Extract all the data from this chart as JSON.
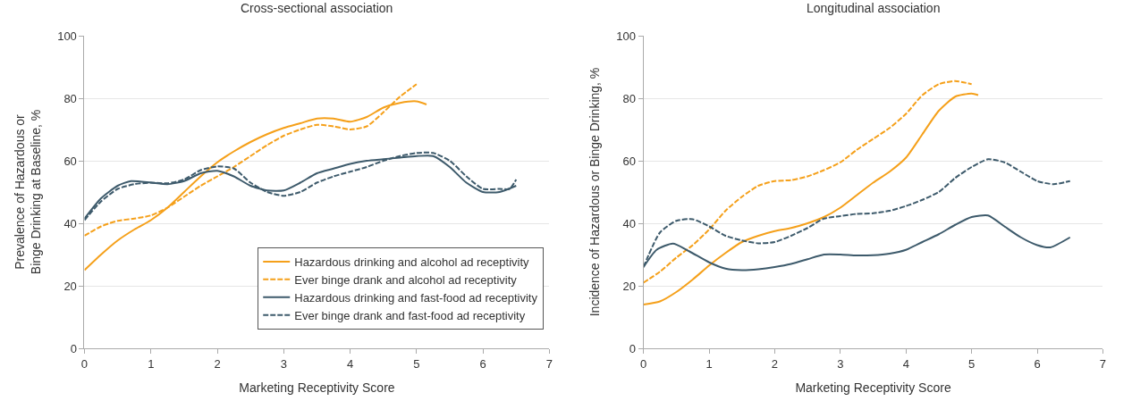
{
  "chart_data": [
    {
      "type": "line",
      "title": "Cross-sectional association",
      "xlabel": "Marketing Receptivity Score",
      "ylabel": "Prevalence of Hazardous or\nBinge Drinking at Baseline, %",
      "xlim": [
        0,
        7
      ],
      "xticks": [
        0,
        1,
        2,
        3,
        4,
        5,
        6,
        7
      ],
      "ylim": [
        0,
        100
      ],
      "yticks": [
        0,
        20,
        40,
        60,
        80,
        100
      ],
      "grid": "y",
      "legend": "bottom right",
      "marker": "none",
      "series": [
        {
          "name": "Hazardous drinking and alcohol ad receptivity",
          "color": "#f5a01a",
          "line_style": "solid",
          "x": [
            0,
            0.25,
            0.5,
            0.75,
            1,
            1.25,
            1.5,
            1.75,
            2,
            2.25,
            2.5,
            2.75,
            3,
            3.25,
            3.5,
            3.75,
            4,
            4.25,
            4.5,
            4.75,
            5,
            5.15
          ],
          "values": [
            25,
            30,
            34.5,
            38,
            41,
            45,
            50,
            55,
            59.5,
            63,
            66,
            68.5,
            70.5,
            72,
            73.5,
            73.5,
            72.5,
            74,
            77,
            78.5,
            79,
            78
          ]
        },
        {
          "name": "Ever binge drank and alcohol ad receptivity",
          "color": "#f5a01a",
          "line_style": "dashed",
          "x": [
            0,
            0.25,
            0.5,
            0.75,
            1,
            1.25,
            1.5,
            1.75,
            2,
            2.25,
            2.5,
            2.75,
            3,
            3.25,
            3.5,
            3.75,
            4,
            4.25,
            4.5,
            4.75,
            5
          ],
          "values": [
            36,
            39,
            40.8,
            41.5,
            42.5,
            45,
            48.5,
            52,
            55,
            58,
            61.5,
            65,
            68,
            70,
            71.5,
            71,
            70,
            71,
            75.5,
            80.5,
            84.5
          ]
        },
        {
          "name": "Hazardous drinking and fast-food ad receptivity",
          "color": "#3d5a6b",
          "line_style": "solid",
          "x": [
            0,
            0.25,
            0.5,
            0.7,
            1,
            1.25,
            1.5,
            1.75,
            2,
            2.25,
            2.5,
            2.75,
            3,
            3.25,
            3.5,
            3.75,
            4,
            4.25,
            4.5,
            4.75,
            5,
            5.25,
            5.5,
            5.75,
            6,
            6.25,
            6.5
          ],
          "values": [
            41.5,
            48,
            52,
            53.5,
            53,
            52.5,
            53.5,
            56,
            56.8,
            55,
            52,
            50.5,
            50.5,
            53,
            56,
            57.5,
            59,
            60,
            60.5,
            61,
            61.5,
            61.5,
            58,
            53,
            50,
            50,
            52
          ]
        },
        {
          "name": "Ever binge drank and fast-food ad receptivity",
          "color": "#3d5a6b",
          "line_style": "dashed",
          "x": [
            0,
            0.25,
            0.5,
            0.75,
            1,
            1.25,
            1.5,
            1.75,
            2,
            2.25,
            2.5,
            2.75,
            3,
            3.25,
            3.5,
            3.75,
            4,
            4.25,
            4.5,
            4.75,
            5,
            5.25,
            5.5,
            5.75,
            6,
            6.25,
            6.4,
            6.5
          ],
          "values": [
            41,
            47,
            51,
            52.5,
            53,
            52.8,
            54,
            57,
            58.2,
            57.5,
            53,
            50,
            48.8,
            50,
            53,
            55,
            56.5,
            58,
            60,
            61.5,
            62.5,
            62.5,
            60,
            55,
            51,
            51,
            51,
            54
          ]
        }
      ]
    },
    {
      "type": "line",
      "title": "Longitudinal association",
      "xlabel": "Marketing Receptivity Score",
      "ylabel": "Incidence of Hazardous or Binge Drinking, %",
      "xlim": [
        0,
        7
      ],
      "xticks": [
        0,
        1,
        2,
        3,
        4,
        5,
        6,
        7
      ],
      "ylim": [
        0,
        100
      ],
      "yticks": [
        0,
        20,
        40,
        60,
        80,
        100
      ],
      "grid": "y",
      "marker": "none",
      "series": [
        {
          "color": "#f5a01a",
          "line_style": "solid",
          "x": [
            0,
            0.25,
            0.5,
            0.75,
            1,
            1.25,
            1.5,
            1.75,
            2,
            2.25,
            2.5,
            2.75,
            3,
            3.25,
            3.5,
            3.75,
            4,
            4.25,
            4.5,
            4.75,
            5,
            5.1
          ],
          "values": [
            14,
            15,
            18,
            22,
            26.5,
            30.5,
            34,
            36,
            37.5,
            38.5,
            40,
            42,
            45,
            49,
            53,
            56.5,
            61,
            68.5,
            76,
            80.5,
            81.5,
            81
          ]
        },
        {
          "color": "#f5a01a",
          "line_style": "dashed",
          "x": [
            0,
            0.25,
            0.5,
            0.75,
            1,
            1.25,
            1.5,
            1.75,
            2,
            2.25,
            2.5,
            2.75,
            3,
            3.25,
            3.5,
            3.75,
            4,
            4.25,
            4.5,
            4.75,
            5
          ],
          "values": [
            21,
            24.5,
            29,
            33,
            38,
            44,
            48.5,
            52,
            53.5,
            53.8,
            55,
            57,
            59.5,
            63.5,
            67,
            70.5,
            75,
            81,
            84.5,
            85.5,
            84.5
          ]
        },
        {
          "color": "#3d5a6b",
          "line_style": "solid",
          "x": [
            0,
            0.2,
            0.45,
            0.7,
            1,
            1.25,
            1.5,
            1.75,
            2,
            2.25,
            2.5,
            2.75,
            3,
            3.25,
            3.5,
            3.75,
            4,
            4.25,
            4.5,
            4.75,
            5,
            5.25,
            5.5,
            5.75,
            6,
            6.2,
            6.5
          ],
          "values": [
            26,
            31.5,
            33.5,
            31,
            27.5,
            25.5,
            25,
            25.3,
            26,
            27,
            28.5,
            30,
            30,
            29.7,
            29.8,
            30.3,
            31.5,
            34,
            36.5,
            39.5,
            42,
            42.5,
            39,
            35.5,
            33,
            32.3,
            35.5
          ]
        },
        {
          "color": "#3d5a6b",
          "line_style": "dashed",
          "x": [
            0,
            0.25,
            0.5,
            0.75,
            1,
            1.25,
            1.5,
            1.75,
            2,
            2.25,
            2.5,
            2.75,
            3,
            3.25,
            3.5,
            3.75,
            4,
            4.25,
            4.5,
            4.75,
            5,
            5.25,
            5.5,
            5.75,
            6,
            6.25,
            6.5
          ],
          "values": [
            26,
            37,
            40.8,
            41.3,
            39,
            36,
            34.5,
            33.6,
            34,
            36,
            38.5,
            41.5,
            42.3,
            43,
            43.2,
            44,
            45.5,
            47.5,
            50,
            54.5,
            58,
            60.5,
            59.5,
            56.5,
            53.5,
            52.5,
            53.5
          ]
        }
      ]
    }
  ]
}
